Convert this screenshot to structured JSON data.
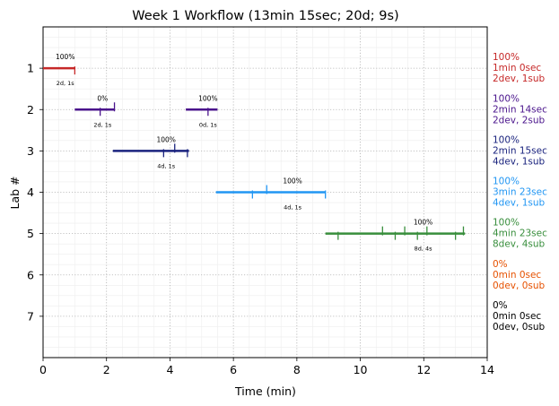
{
  "chart_data": {
    "type": "timeline",
    "title": "Week 1 Workflow (13min 15sec; 20d; 9s)",
    "xlabel": "Time (min)",
    "ylabel": "Lab #",
    "xlim": [
      0,
      14
    ],
    "ylim": [
      0,
      8
    ],
    "x_ticks": [
      "0",
      "2",
      "4",
      "6",
      "8",
      "10",
      "12",
      "14"
    ],
    "y_ticks": [
      "1",
      "2",
      "3",
      "4",
      "5",
      "6",
      "7"
    ],
    "grid": true,
    "labs": [
      {
        "lab": 1,
        "color": "#c62828",
        "segments": [
          {
            "start": 0.0,
            "end": 1.0,
            "pct_label": "100%",
            "count_label": "2d, 1s",
            "commits": [
              1.0
            ]
          }
        ],
        "summary": [
          "100%",
          "1min 0sec",
          "2dev, 1sub"
        ]
      },
      {
        "lab": 2,
        "color": "#4a148c",
        "segments": [
          {
            "start": 1.0,
            "end": 2.25,
            "pct_label": "0%",
            "count_label": "2d, 1s",
            "commits": [
              1.8,
              2.25
            ]
          },
          {
            "start": 4.5,
            "end": 5.5,
            "pct_label": "100%",
            "count_label": "0d, 1s",
            "commits": [
              5.2
            ]
          }
        ],
        "summary": [
          "100%",
          "2min 14sec",
          "2dev, 2sub"
        ]
      },
      {
        "lab": 3,
        "color": "#1a237e",
        "segments": [
          {
            "start": 2.2,
            "end": 4.6,
            "pct_label": "100%",
            "count_label": "4d, 1s",
            "commits": [
              3.8,
              4.15,
              4.55
            ]
          }
        ],
        "summary": [
          "100%",
          "2min 15sec",
          "4dev, 1sub"
        ]
      },
      {
        "lab": 4,
        "color": "#2196f3",
        "segments": [
          {
            "start": 5.45,
            "end": 8.9,
            "pct_label": "100%",
            "count_label": "4d, 1s",
            "commits": [
              6.6,
              7.05,
              8.9
            ]
          }
        ],
        "summary": [
          "100%",
          "3min 23sec",
          "4dev, 1sub"
        ]
      },
      {
        "lab": 5,
        "color": "#388e3c",
        "segments": [
          {
            "start": 8.9,
            "end": 13.3,
            "pct_label": "100%",
            "count_label": "8d, 4s",
            "commits": [
              9.3,
              10.7,
              11.1,
              11.4,
              11.8,
              12.1,
              13.0,
              13.25
            ]
          }
        ],
        "summary": [
          "100%",
          "4min 23sec",
          "8dev, 4sub"
        ]
      },
      {
        "lab": 6,
        "color": "#e65100",
        "segments": [],
        "summary": [
          "0%",
          "0min 0sec",
          "0dev, 0sub"
        ]
      },
      {
        "lab": 7,
        "color": "#000000",
        "segments": [],
        "summary": [
          "0%",
          "0min 0sec",
          "0dev, 0sub"
        ]
      }
    ]
  }
}
